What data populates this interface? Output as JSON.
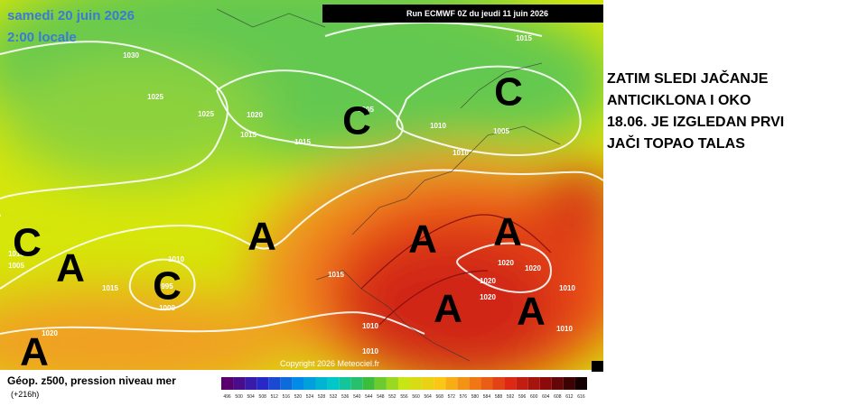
{
  "map": {
    "date": "samedi 20 juin 2026",
    "time": "2:00 locale",
    "run": "Run ECMWF 0Z du jeudi 11 juin 2026",
    "copyright": "Copyright 2026 Meteociel.fr",
    "pressure_labels": [
      "1030",
      "1025",
      "1025",
      "1020",
      "1015",
      "1015",
      "1005",
      "1015",
      "1010",
      "1010",
      "1005",
      "1010",
      "995",
      "1000",
      "1015",
      "1010",
      "1005",
      "1020",
      "1015",
      "1010",
      "1010",
      "1020",
      "1020",
      "1020",
      "1020",
      "1010",
      "1010"
    ],
    "systems": [
      "C",
      "C",
      "C",
      "A",
      "C",
      "A",
      "A",
      "A",
      "A",
      "A",
      "A"
    ]
  },
  "legend": {
    "title": "Géop. z500, pression niveau mer",
    "lead": "(+216h)",
    "scale": [
      496,
      500,
      504,
      508,
      512,
      516,
      520,
      524,
      528,
      532,
      536,
      540,
      544,
      548,
      552,
      556,
      560,
      564,
      568,
      572,
      576,
      580,
      584,
      588,
      592,
      596,
      600,
      604,
      608,
      612,
      616
    ]
  },
  "caption": {
    "lines": [
      "ZATIM SLEDI JAČANJE",
      "ANTICIKLONA I OKO",
      "18.06. JE IZGLEDAN PRVI",
      "JAČI TOPAO TALAS"
    ]
  }
}
